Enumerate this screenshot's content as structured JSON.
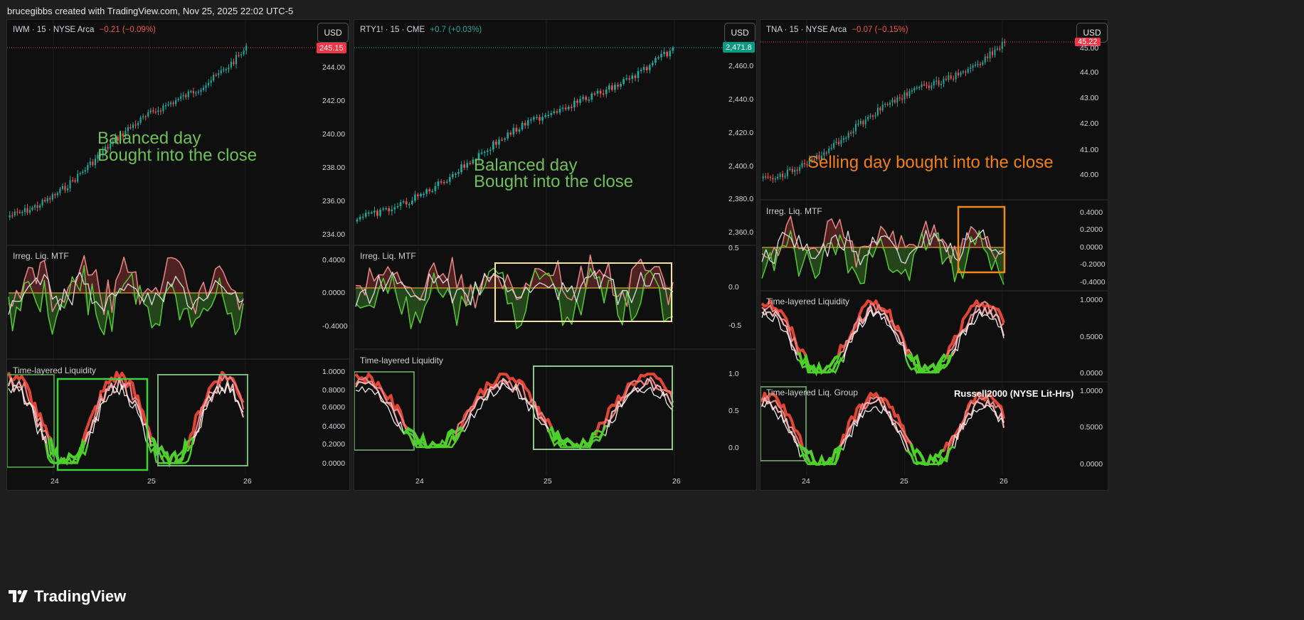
{
  "header": {
    "text": "brucegibbs created with TradingView.com, Nov 25, 2025 22:02 UTC-5"
  },
  "branding": {
    "name": "TradingView"
  },
  "colors": {
    "up": "#26a69a",
    "down": "#ef5350",
    "green_note": "#6fbf5a",
    "orange_note": "#f07f18"
  },
  "charts": [
    {
      "symbol": "IWM · 15 · NYSE Arca",
      "change": "−0.21 (−0.09%)",
      "currency": "USD",
      "last_price": "245.15",
      "price_axis": [
        "244.00",
        "242.00",
        "240.00",
        "238.00",
        "236.00",
        "234.00"
      ],
      "liq_axis": [
        "0.4000",
        "0.0000",
        "-0.4000"
      ],
      "tll_axis": [
        "1.0000",
        "0.8000",
        "0.6000",
        "0.4000",
        "0.2000",
        "0.0000"
      ],
      "x_axis": [
        "24",
        "25",
        "26"
      ],
      "note": [
        "Balanced day",
        "Bought into the close"
      ],
      "pane1_title": "Irreg. Liq. MTF",
      "pane2_title": "Time-layered Liquidity"
    },
    {
      "symbol": "RTY1! · 15 · CME",
      "change": "+0.7 (+0.03%)",
      "currency": "USD",
      "last_price": "2,471.8",
      "price_axis": [
        "2,460.0",
        "2,440.0",
        "2,420.0",
        "2,400.0",
        "2,380.0",
        "2,360.0"
      ],
      "liq_axis": [
        "0.5",
        "0.0",
        "-0.5"
      ],
      "tll_axis": [
        "1.0",
        "0.5",
        "0.0"
      ],
      "x_axis": [
        "24",
        "25",
        "26"
      ],
      "note": [
        "Balanced day",
        "Bought into the close"
      ],
      "pane1_title": "Irreg. Liq. MTF",
      "pane2_title": "Time-layered Liquidity"
    },
    {
      "symbol": "TNA · 15 · NYSE Arca",
      "change": "−0.07 (−0.15%)",
      "currency": "USD",
      "last_price": "45.22",
      "price_axis": [
        "45.00",
        "44.00",
        "43.00",
        "42.00",
        "41.00",
        "40.00"
      ],
      "liq_axis": [
        "0.4000",
        "0.2000",
        "0.0000",
        "-0.2000",
        "-0.4000"
      ],
      "tll_axis": [
        "1.0000",
        "0.5000",
        "0.0000"
      ],
      "tllg_axis": [
        "1.0000",
        "0.5000",
        "0.0000"
      ],
      "x_axis": [
        "24",
        "25",
        "26"
      ],
      "note": [
        "Selling day bought into the close"
      ],
      "pane1_title": "Irreg. Liq. MTF",
      "pane2_title": "Time-layered Liquidity",
      "pane3_title": "Time-layered Liq. Group",
      "pane3_label": "Russell2000 (NYSE Lit-Hrs)"
    }
  ]
}
